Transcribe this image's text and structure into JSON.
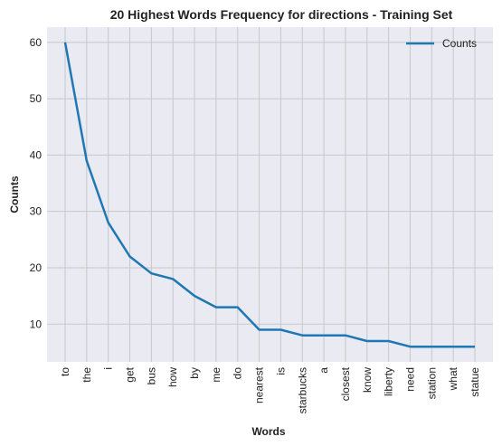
{
  "chart_data": {
    "type": "line",
    "title": "20 Highest Words Frequency for directions - Training Set",
    "xlabel": "Words",
    "ylabel": "Counts",
    "categories": [
      "to",
      "the",
      "i",
      "get",
      "bus",
      "how",
      "by",
      "me",
      "do",
      "nearest",
      "is",
      "starbucks",
      "a",
      "closest",
      "know",
      "liberty",
      "need",
      "station",
      "what",
      "statue"
    ],
    "series": [
      {
        "name": "Counts",
        "color": "#1f77b4",
        "values": [
          60,
          39,
          28,
          22,
          19,
          18,
          15,
          13,
          13,
          9,
          9,
          8,
          8,
          8,
          7,
          7,
          6,
          6,
          6,
          6
        ]
      }
    ],
    "ylim": [
      3.3,
      62.7
    ],
    "yticks": [
      10,
      20,
      30,
      40,
      50,
      60
    ],
    "grid": true,
    "legend": "top-right",
    "background": "#eaeaf2",
    "gridcolor": "#c8c8c8"
  }
}
